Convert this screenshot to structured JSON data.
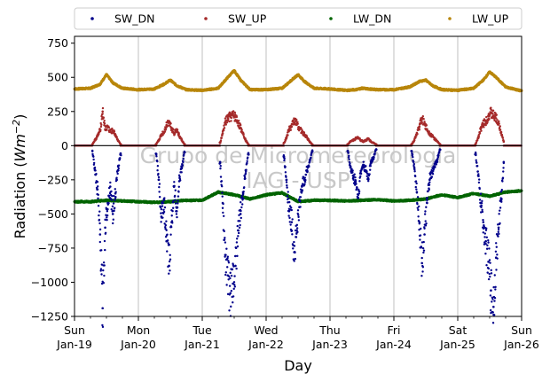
{
  "chart_data": {
    "type": "scatter",
    "xlabel": "Day",
    "ylabel_main": "Radiation (",
    "ylabel_unit_base": "Wm",
    "ylabel_unit_exp": "−2",
    "ylabel_close": ")",
    "ylim": [
      -1250,
      800
    ],
    "xlim": [
      0,
      7
    ],
    "yticks": [
      {
        "value": 750,
        "label": "750"
      },
      {
        "value": 500,
        "label": "500"
      },
      {
        "value": 250,
        "label": "250"
      },
      {
        "value": 0,
        "label": "0"
      },
      {
        "value": -250,
        "label": "−250"
      },
      {
        "value": -500,
        "label": "−500"
      },
      {
        "value": -750,
        "label": "−750"
      },
      {
        "value": -1000,
        "label": "−1000"
      },
      {
        "value": -1250,
        "label": "−1250"
      }
    ],
    "xticks": [
      {
        "value": 0,
        "day": "Sun",
        "date": "Jan-19"
      },
      {
        "value": 1,
        "day": "Mon",
        "date": "Jan-20"
      },
      {
        "value": 2,
        "day": "Tue",
        "date": "Jan-21"
      },
      {
        "value": 3,
        "day": "Wed",
        "date": "Jan-22"
      },
      {
        "value": 4,
        "day": "Thu",
        "date": "Jan-23"
      },
      {
        "value": 5,
        "day": "Fri",
        "date": "Jan-24"
      },
      {
        "value": 6,
        "day": "Sat",
        "date": "Jan-25"
      },
      {
        "value": 7,
        "day": "Sun",
        "date": "Jan-26"
      }
    ],
    "grid": "vertical",
    "legend_position": "top",
    "watermark_lines": [
      "Grupo de Micrometeorologia",
      "IAG - USP"
    ],
    "series": [
      {
        "name": "SW_DN",
        "color": "#00008b",
        "x": [
          0.28,
          0.32,
          0.36,
          0.4,
          0.44,
          0.48,
          0.52,
          0.56,
          0.6,
          0.64,
          0.68,
          0.72,
          1.28,
          1.32,
          1.36,
          1.4,
          1.44,
          1.48,
          1.52,
          1.56,
          1.6,
          1.64,
          1.68,
          1.72,
          2.28,
          2.32,
          2.36,
          2.4,
          2.44,
          2.48,
          2.52,
          2.56,
          2.6,
          2.64,
          2.68,
          2.72,
          3.28,
          3.32,
          3.36,
          3.4,
          3.44,
          3.48,
          3.52,
          3.56,
          3.6,
          3.64,
          3.68,
          3.72,
          4.28,
          4.32,
          4.36,
          4.4,
          4.44,
          4.48,
          4.52,
          4.56,
          4.6,
          4.64,
          4.68,
          4.72,
          5.28,
          5.32,
          5.36,
          5.4,
          5.44,
          5.48,
          5.52,
          5.56,
          5.6,
          5.64,
          5.68,
          5.72,
          6.28,
          6.32,
          6.36,
          6.4,
          6.44,
          6.48,
          6.52,
          6.56,
          6.6,
          6.64,
          6.68,
          6.72
        ],
        "y": [
          -40,
          -180,
          -320,
          -650,
          -1190,
          -600,
          -420,
          -300,
          -500,
          -350,
          -180,
          -60,
          -60,
          -250,
          -520,
          -400,
          -700,
          -880,
          -560,
          -300,
          -480,
          -260,
          -160,
          -50,
          -120,
          -420,
          -800,
          -950,
          -1080,
          -1010,
          -880,
          -620,
          -500,
          -350,
          -180,
          -60,
          -80,
          -250,
          -480,
          -560,
          -780,
          -620,
          -450,
          -300,
          -250,
          -180,
          -120,
          -40,
          -40,
          -160,
          -220,
          -260,
          -380,
          -200,
          -140,
          -180,
          -240,
          -120,
          -90,
          -30,
          -40,
          -160,
          -340,
          -560,
          -860,
          -650,
          -420,
          -250,
          -200,
          -150,
          -100,
          -30,
          -60,
          -220,
          -420,
          -560,
          -700,
          -850,
          -1060,
          -1180,
          -820,
          -600,
          -400,
          -120
        ]
      },
      {
        "name": "SW_UP",
        "color": "#a52a2a",
        "x": [
          0.28,
          0.32,
          0.36,
          0.4,
          0.44,
          0.48,
          0.52,
          0.56,
          0.6,
          0.64,
          0.68,
          0.72,
          1.28,
          1.32,
          1.36,
          1.4,
          1.44,
          1.48,
          1.52,
          1.56,
          1.6,
          1.64,
          1.68,
          1.72,
          2.28,
          2.32,
          2.36,
          2.4,
          2.44,
          2.48,
          2.52,
          2.56,
          2.6,
          2.64,
          2.68,
          2.72,
          3.28,
          3.32,
          3.36,
          3.4,
          3.44,
          3.48,
          3.52,
          3.56,
          3.6,
          3.64,
          3.68,
          3.72,
          4.28,
          4.32,
          4.36,
          4.4,
          4.44,
          4.48,
          4.52,
          4.56,
          4.6,
          4.64,
          4.68,
          4.72,
          5.28,
          5.32,
          5.36,
          5.4,
          5.44,
          5.48,
          5.52,
          5.56,
          5.6,
          5.64,
          5.68,
          5.72,
          6.28,
          6.32,
          6.36,
          6.4,
          6.44,
          6.48,
          6.52,
          6.56,
          6.6,
          6.64,
          6.68,
          6.72
        ],
        "y": [
          10,
          40,
          70,
          110,
          250,
          120,
          140,
          100,
          110,
          80,
          40,
          10,
          10,
          40,
          80,
          100,
          150,
          180,
          130,
          90,
          120,
          70,
          40,
          10,
          20,
          90,
          170,
          200,
          210,
          220,
          210,
          170,
          130,
          90,
          40,
          10,
          20,
          60,
          120,
          140,
          190,
          160,
          130,
          100,
          80,
          60,
          30,
          10,
          10,
          30,
          40,
          50,
          60,
          40,
          30,
          40,
          50,
          30,
          20,
          10,
          10,
          40,
          90,
          140,
          200,
          160,
          120,
          90,
          70,
          50,
          30,
          10,
          10,
          60,
          120,
          160,
          180,
          220,
          240,
          220,
          200,
          160,
          100,
          30
        ]
      },
      {
        "name": "LW_DN",
        "color": "#006400",
        "x": [
          0.0,
          0.25,
          0.5,
          0.75,
          1.0,
          1.25,
          1.5,
          1.75,
          2.0,
          2.25,
          2.5,
          2.75,
          3.0,
          3.25,
          3.5,
          3.75,
          4.0,
          4.25,
          4.5,
          4.75,
          5.0,
          5.25,
          5.5,
          5.75,
          6.0,
          6.25,
          6.5,
          6.75,
          7.0
        ],
        "y": [
          -410,
          -410,
          -400,
          -405,
          -410,
          -415,
          -410,
          -400,
          -400,
          -340,
          -360,
          -390,
          -360,
          -345,
          -410,
          -400,
          -400,
          -405,
          -400,
          -395,
          -405,
          -400,
          -390,
          -360,
          -380,
          -350,
          -370,
          -340,
          -330
        ]
      },
      {
        "name": "LW_UP",
        "color": "#b8860b",
        "x": [
          0.0,
          0.25,
          0.4,
          0.5,
          0.6,
          0.75,
          1.0,
          1.25,
          1.4,
          1.5,
          1.6,
          1.75,
          2.0,
          2.25,
          2.4,
          2.5,
          2.6,
          2.75,
          3.0,
          3.25,
          3.4,
          3.5,
          3.6,
          3.75,
          4.0,
          4.25,
          4.4,
          4.5,
          4.6,
          4.75,
          5.0,
          5.25,
          5.4,
          5.5,
          5.6,
          5.75,
          6.0,
          6.25,
          6.4,
          6.5,
          6.6,
          6.75,
          7.0
        ],
        "y": [
          415,
          420,
          450,
          520,
          460,
          420,
          410,
          415,
          450,
          480,
          440,
          410,
          405,
          420,
          500,
          550,
          480,
          410,
          410,
          420,
          480,
          520,
          470,
          420,
          415,
          405,
          410,
          420,
          415,
          410,
          410,
          430,
          470,
          480,
          440,
          410,
          405,
          420,
          480,
          540,
          500,
          430,
          400
        ]
      }
    ]
  }
}
